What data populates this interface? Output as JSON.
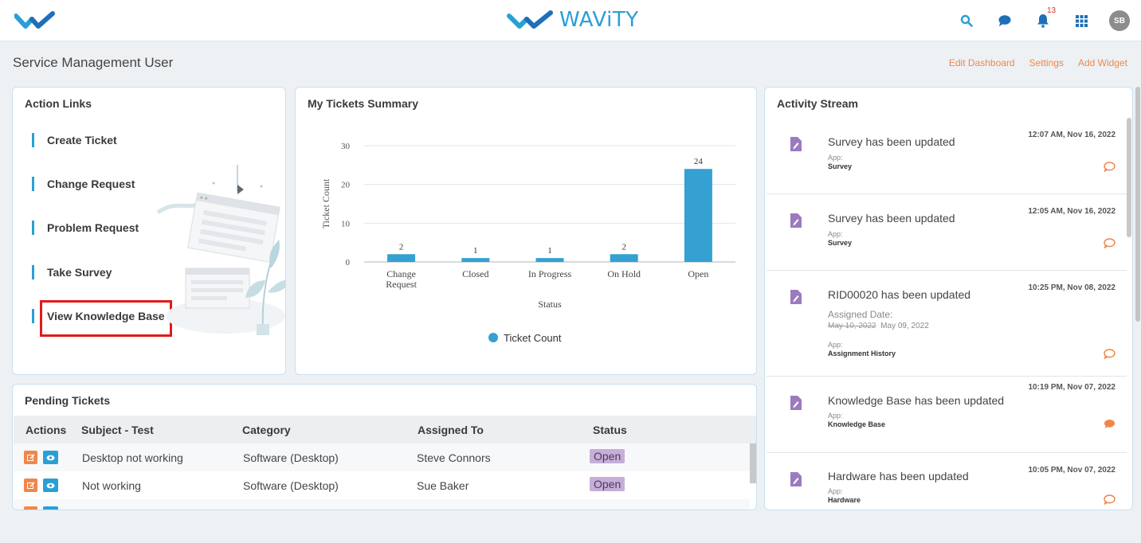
{
  "header": {
    "brand": "WAViTY",
    "notification_count": "13",
    "avatar_initials": "SB"
  },
  "page": {
    "title": "Service Management User",
    "edit_dashboard": "Edit Dashboard",
    "settings": "Settings",
    "add_widget": "Add Widget"
  },
  "action_links": {
    "title": "Action Links",
    "items": [
      "Create Ticket",
      "Change Request",
      "Problem Request",
      "Take Survey",
      "View Knowledge Base"
    ]
  },
  "summary": {
    "title": "My Tickets Summary",
    "legend": "Ticket Count"
  },
  "chart_data": {
    "type": "bar",
    "categories": [
      "Change Request",
      "Closed",
      "In Progress",
      "On Hold",
      "Open"
    ],
    "series": [
      {
        "name": "Ticket Count",
        "values": [
          2,
          1,
          1,
          2,
          24
        ]
      }
    ],
    "xlabel": "Status",
    "ylabel": "Ticket Count",
    "ylim": [
      0,
      30
    ],
    "yticks": [
      0,
      10,
      20,
      30
    ],
    "grid": true,
    "legend_position": "bottom",
    "color": "#35a0d2"
  },
  "activity": {
    "title": "Activity Stream",
    "app_label": "App:",
    "items": [
      {
        "time": "12:07 AM, Nov 16, 2022",
        "title": "Survey has been updated",
        "app": "Survey"
      },
      {
        "time": "12:05 AM, Nov 16, 2022",
        "title": "Survey has been updated",
        "app": "Survey"
      },
      {
        "time": "10:25 PM, Nov 08, 2022",
        "title": "RID00020 has been updated",
        "extra_label": "Assigned Date:",
        "old_value": "May 10, 2022",
        "new_value": "May 09, 2022",
        "app": "Assignment History"
      },
      {
        "time": "10:19 PM, Nov 07, 2022",
        "title": "Knowledge Base has been updated",
        "app": "Knowledge Base"
      },
      {
        "time": "10:05 PM, Nov 07, 2022",
        "title": "Hardware has been updated",
        "app": "Hardware"
      }
    ]
  },
  "pending": {
    "title": "Pending Tickets",
    "columns": [
      "Actions",
      "Subject - Test",
      "Category",
      "Assigned To",
      "Status"
    ],
    "rows": [
      {
        "subject": "Desktop not working",
        "category": "Software (Desktop)",
        "assigned": "Steve Connors",
        "status": "Open"
      },
      {
        "subject": "Not working",
        "category": "Software (Desktop)",
        "assigned": "Sue Baker",
        "status": "Open"
      }
    ]
  },
  "colors": {
    "accent": "#2a9fd6",
    "link_orange": "#f0874a",
    "status_open": "#c7aed9",
    "activity_icon": "#9b7bc0",
    "highlight_box": "#e01a1a"
  }
}
